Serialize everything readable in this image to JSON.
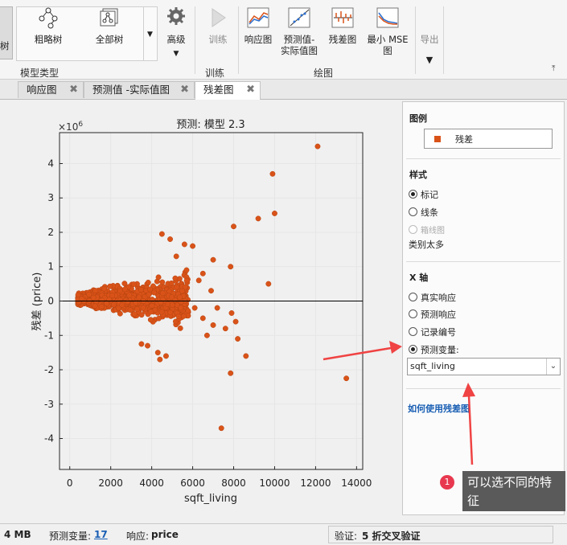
{
  "toolstrip": {
    "partial_label": "树",
    "coarse_tree_label": "粗略树",
    "all_tree_label": "全部树",
    "advanced_label": "高级",
    "model_type_section": "模型类型",
    "train_label": "训练",
    "train_section": "训练",
    "response_plot_label": "响应图",
    "pred_actual_label_1": "预测值-",
    "pred_actual_label_2": "实际值图",
    "residual_plot_label": "残差图",
    "min_mse_label_1": "最小 MSE",
    "min_mse_label_2": "图",
    "plot_section": "绘图",
    "export_label": "导出"
  },
  "tabs": [
    {
      "label": "响应图"
    },
    {
      "label": "预测值 -实际值图"
    },
    {
      "label": "残差图"
    }
  ],
  "plot": {
    "title": "预测: 模型 2.3",
    "exponent": "×10",
    "exponent_power": "6",
    "xlabel": "sqft_living",
    "ylabel": "残差 (price)",
    "x_ticks": [
      "0",
      "2000",
      "4000",
      "6000",
      "8000",
      "10000",
      "12000",
      "14000"
    ],
    "y_ticks": [
      "4",
      "3",
      "2",
      "1",
      "0",
      "-1",
      "-2",
      "-3",
      "-4"
    ]
  },
  "chart_data": {
    "type": "scatter",
    "title": "预测: 模型 2.3",
    "xlabel": "sqft_living",
    "ylabel": "残差 (price)",
    "xlim": [
      -500,
      14300
    ],
    "ylim": [
      -4.9,
      4.9
    ],
    "y_scale": "×10^6",
    "grid": true,
    "legend": "right panel",
    "series": [
      {
        "name": "残差",
        "color": "#d95319",
        "points": [
          [
            12100,
            4.5
          ],
          [
            9900,
            3.7
          ],
          [
            10000,
            2.55
          ],
          [
            9200,
            2.4
          ],
          [
            8000,
            2.17
          ],
          [
            7850,
            1.0
          ],
          [
            9700,
            0.5
          ],
          [
            7900,
            -0.35
          ],
          [
            8100,
            -0.6
          ],
          [
            8600,
            -1.6
          ],
          [
            7850,
            -2.1
          ],
          [
            13500,
            -2.25
          ],
          [
            7400,
            -3.7
          ],
          [
            8200,
            -1.1
          ],
          [
            7600,
            -0.8
          ],
          [
            7000,
            1.2
          ],
          [
            6500,
            0.8
          ],
          [
            6900,
            0.3
          ],
          [
            7200,
            -0.2
          ],
          [
            7000,
            -0.7
          ],
          [
            6500,
            -0.5
          ],
          [
            6300,
            0.6
          ],
          [
            6700,
            -1.0
          ],
          [
            6000,
            1.6
          ],
          [
            5600,
            1.65
          ],
          [
            4900,
            1.8
          ],
          [
            4500,
            1.95
          ],
          [
            5200,
            1.3
          ],
          [
            4700,
            -1.6
          ],
          [
            4400,
            -1.7
          ],
          [
            4300,
            -1.5
          ],
          [
            3800,
            -1.3
          ],
          [
            3500,
            -1.25
          ],
          [
            5700,
            0.9
          ],
          [
            6100,
            -0.2
          ]
        ]
      }
    ]
  },
  "right_panel": {
    "legend_title": "图例",
    "legend_entry": "残差",
    "style_title": "样式",
    "style_options": [
      "标记",
      "线条",
      "箱线图"
    ],
    "too_many_categories": "类别太多",
    "xaxis_title": "X 轴",
    "xaxis_options": [
      "真实响应",
      "预测响应",
      "记录编号",
      "预测变量:"
    ],
    "predictor_value": "sqft_living",
    "help_link": "如何使用残差图"
  },
  "status": {
    "memory": "4 MB",
    "predictors_label": "预测变量:",
    "predictors_count": "17",
    "response_label": "响应:",
    "response_value": "price",
    "validation_label": "验证:",
    "validation_value": "5 折交叉验证"
  },
  "annotation": {
    "badge": "1",
    "text": "可以选不同的特征"
  },
  "colors": {
    "marker": "#d95319",
    "arrow": "#f04343",
    "link": "#1a5fb4"
  }
}
